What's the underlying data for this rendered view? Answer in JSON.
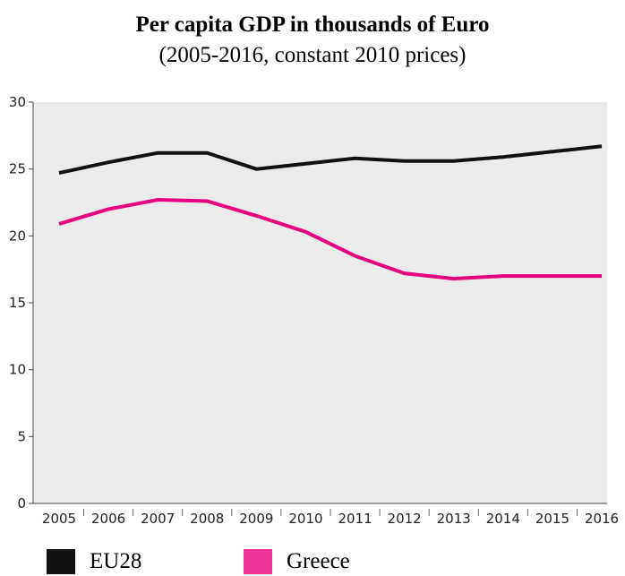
{
  "chart_data": {
    "type": "line",
    "title": "Per capita GDP in thousands of Euro",
    "subtitle": "(2005-2016, constant 2010 prices)",
    "xlabel": "",
    "ylabel": "",
    "categories": [
      "2005",
      "2006",
      "2007",
      "2008",
      "2009",
      "2010",
      "2011",
      "2012",
      "2013",
      "2014",
      "2015",
      "2016"
    ],
    "ylim": [
      0,
      30
    ],
    "yticks": [
      0,
      5,
      10,
      15,
      20,
      25,
      30
    ],
    "grid": false,
    "legend_position": "bottom-left",
    "background_color": "#ebebeb",
    "series": [
      {
        "name": "EU28",
        "color": "#111111",
        "values": [
          24.7,
          25.5,
          26.2,
          26.2,
          25.0,
          25.4,
          25.8,
          25.6,
          25.6,
          25.9,
          26.3,
          26.7
        ]
      },
      {
        "name": "Greece",
        "color": "#e6007e",
        "values": [
          20.9,
          22.0,
          22.7,
          22.6,
          21.5,
          20.3,
          18.5,
          17.2,
          16.8,
          17.0,
          17.0,
          17.0
        ]
      }
    ]
  }
}
